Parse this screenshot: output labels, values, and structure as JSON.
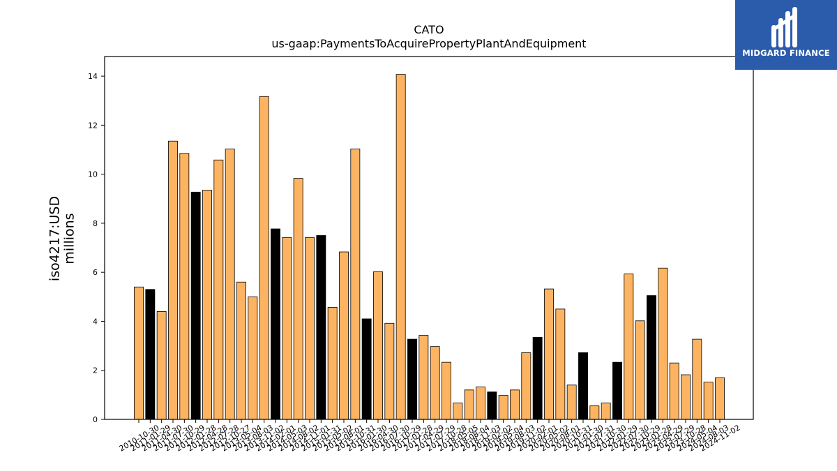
{
  "logo": {
    "text": "MIDGARD FINANCE",
    "icon": "midgard-logo-icon",
    "color": "#2b5bab"
  },
  "chart_data": {
    "type": "bar",
    "title": "CATO",
    "subtitle": "us-gaap:PaymentsToAcquirePropertyPlantAndEquipment",
    "xlabel": "",
    "ylabel": "iso4217:USD\nmillions",
    "ylim": [
      0,
      14.8
    ],
    "yticks": [
      0,
      2,
      4,
      6,
      8,
      10,
      12,
      14
    ],
    "grid": false,
    "colors": {
      "quarterly": "#fdb462",
      "annual": "#000000",
      "edge": "#000000"
    },
    "categories": [
      "2010-10-30",
      "2011-01-29",
      "2011-04-30",
      "2011-07-30",
      "2011-10-29",
      "2012-01-28",
      "2012-04-28",
      "2012-07-28",
      "2012-10-27",
      "2013-05-04",
      "2013-08-03",
      "2013-11-02",
      "2014-02-01",
      "2014-05-03",
      "2014-08-02",
      "2014-11-01",
      "2015-01-31",
      "2015-05-02",
      "2015-08-01",
      "2015-10-31",
      "2016-01-30",
      "2016-04-30",
      "2016-07-30",
      "2016-10-29",
      "2017-01-28",
      "2017-04-29",
      "2017-07-29",
      "2017-10-28",
      "2018-05-05",
      "2018-08-04",
      "2018-11-03",
      "2019-02-02",
      "2019-05-04",
      "2019-08-03",
      "2019-11-02",
      "2020-02-01",
      "2020-05-02",
      "2020-08-01",
      "2020-10-31",
      "2021-01-30",
      "2021-07-31",
      "2021-10-30",
      "2022-01-29",
      "2022-07-30",
      "2022-10-29",
      "2023-01-28",
      "2023-04-29",
      "2023-07-29",
      "2023-10-28",
      "2024-05-04",
      "2024-08-03",
      "2024-11-02"
    ],
    "values": [
      5.4,
      5.3,
      4.4,
      11.35,
      10.85,
      9.27,
      9.35,
      10.58,
      11.03,
      5.6,
      5.0,
      13.17,
      7.77,
      7.42,
      9.83,
      7.42,
      7.5,
      4.57,
      6.83,
      11.03,
      4.1,
      6.02,
      3.92,
      14.07,
      3.27,
      3.43,
      2.97,
      2.33,
      0.67,
      1.2,
      1.32,
      1.12,
      0.98,
      1.2,
      2.72,
      3.35,
      5.32,
      4.5,
      1.4,
      2.72,
      0.55,
      0.67,
      2.33,
      5.93,
      4.02,
      5.05,
      6.17,
      2.3,
      1.82,
      3.27,
      1.52,
      1.7
    ],
    "annual": [
      false,
      true,
      false,
      false,
      false,
      true,
      false,
      false,
      false,
      false,
      false,
      false,
      true,
      false,
      false,
      false,
      true,
      false,
      false,
      false,
      true,
      false,
      false,
      false,
      true,
      false,
      false,
      false,
      false,
      false,
      false,
      true,
      false,
      false,
      false,
      true,
      false,
      false,
      false,
      true,
      false,
      false,
      true,
      false,
      false,
      true,
      false,
      false,
      false,
      false,
      false,
      false
    ]
  }
}
